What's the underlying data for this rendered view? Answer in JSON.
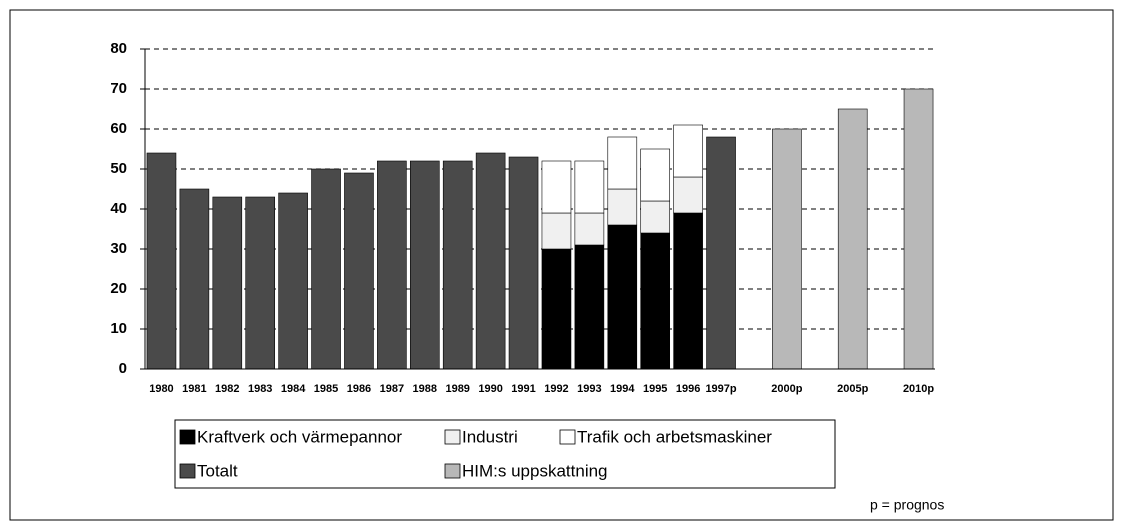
{
  "chart_data": {
    "type": "bar",
    "stacked": true,
    "categories": [
      "1980",
      "1981",
      "1982",
      "1983",
      "1984",
      "1985",
      "1986",
      "1987",
      "1988",
      "1989",
      "1990",
      "1991",
      "1992",
      "1993",
      "1994",
      "1995",
      "1996",
      "1997p",
      null,
      "2000p",
      null,
      "2005p",
      null,
      "2010p"
    ],
    "series": [
      {
        "name": "Kraftverk och värmepannor",
        "color": "#000000",
        "values": [
          null,
          null,
          null,
          null,
          null,
          null,
          null,
          null,
          null,
          null,
          null,
          null,
          30,
          31,
          36,
          34,
          39,
          null,
          null,
          null,
          null,
          null,
          null,
          null
        ]
      },
      {
        "name": "Industri",
        "color": "#f0f0f0",
        "values": [
          null,
          null,
          null,
          null,
          null,
          null,
          null,
          null,
          null,
          null,
          null,
          null,
          9,
          8,
          9,
          8,
          9,
          null,
          null,
          null,
          null,
          null,
          null,
          null
        ]
      },
      {
        "name": "Trafik och arbetsmaskiner",
        "color": "#ffffff",
        "values": [
          null,
          null,
          null,
          null,
          null,
          null,
          null,
          null,
          null,
          null,
          null,
          null,
          13,
          13,
          13,
          13,
          13,
          null,
          null,
          null,
          null,
          null,
          null,
          null
        ]
      },
      {
        "name": "Totalt",
        "color": "#4a4a4a",
        "values": [
          54,
          45,
          43,
          43,
          44,
          50,
          49,
          52,
          52,
          52,
          54,
          53,
          null,
          null,
          null,
          null,
          null,
          58,
          null,
          null,
          null,
          null,
          null,
          null
        ]
      },
      {
        "name": "HIM:s uppskattning",
        "color": "#b8b8b8",
        "values": [
          null,
          null,
          null,
          null,
          null,
          null,
          null,
          null,
          null,
          null,
          null,
          null,
          null,
          null,
          null,
          null,
          null,
          null,
          null,
          60,
          null,
          65,
          null,
          70
        ]
      }
    ],
    "ylim": [
      0,
      80
    ],
    "yticks": [
      0,
      10,
      20,
      30,
      40,
      50,
      60,
      70,
      80
    ],
    "grid": true,
    "annotation": "p = prognos"
  }
}
